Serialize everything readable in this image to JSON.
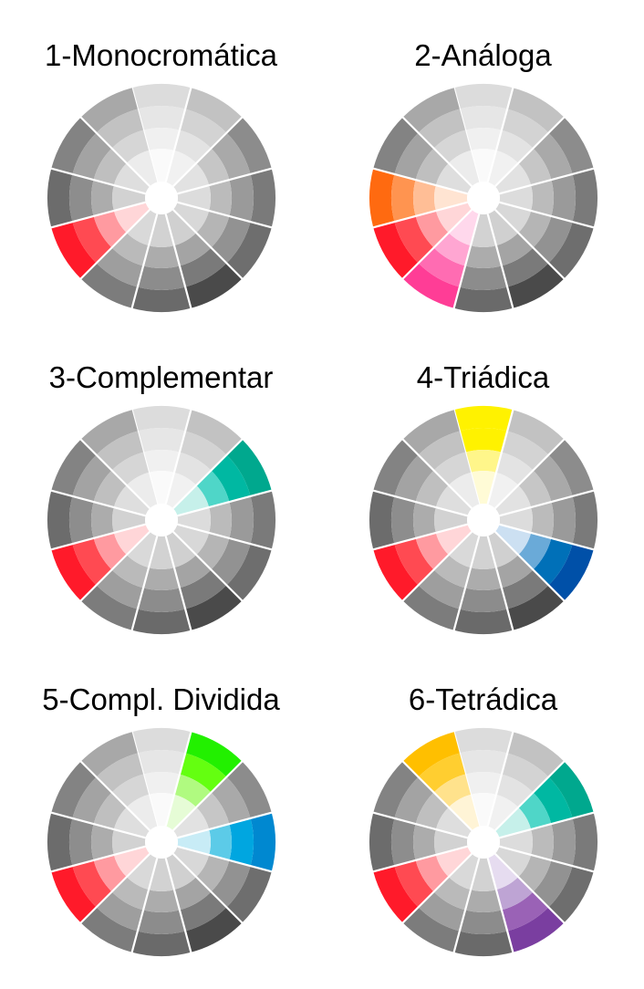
{
  "gray_palette": {
    "ring_outer": [
      "#dcdcdc",
      "#c2c2c2",
      "#8c8c8c",
      "#7a7a7a",
      "#6e6e6e",
      "#4a4a4a",
      "#6a6a6a",
      "#7c7c7c",
      "#6f6f6f",
      "#6c6c6c",
      "#838383",
      "#a8a8a8"
    ],
    "ring_mid": [
      "#e6e6e6",
      "#d3d3d3",
      "#a9a9a9",
      "#9a9a9a",
      "#929292",
      "#7a7a7a",
      "#8c8c8c",
      "#9e9e9e",
      "#8f8f8f",
      "#8d8d8d",
      "#a3a3a3",
      "#c2c2c2"
    ],
    "ring_inner": [
      "#f0f0f0",
      "#e3e3e3",
      "#c6c6c6",
      "#bbbbbb",
      "#b5b5b5",
      "#a4a4a4",
      "#acacac",
      "#bababa",
      "#aeaeae",
      "#acacac",
      "#bfbfbf",
      "#d6d6d6"
    ],
    "ring_core": [
      "#fafafa",
      "#f1f1f1",
      "#e2e2e2",
      "#dcdcdc",
      "#d8d8d8",
      "#d0d0d0",
      "#d2d2d2",
      "#d9d9d9",
      "#d3d3d3",
      "#d2d2d2",
      "#dedede",
      "#ececec"
    ]
  },
  "wheels": [
    {
      "title": "1-Monocromática",
      "highlights": [
        {
          "segment": 8,
          "colors": [
            "#ff1a2a",
            "#ff4a52",
            "#ff9aa0",
            "#ffd6d8"
          ]
        }
      ]
    },
    {
      "title": "2-Análoga",
      "highlights": [
        {
          "segment": 9,
          "colors": [
            "#ff6a10",
            "#ff9450",
            "#ffbe96",
            "#ffe4d2"
          ]
        },
        {
          "segment": 8,
          "colors": [
            "#ff1a2a",
            "#ff4a52",
            "#ff9aa0",
            "#ffd6d8"
          ]
        },
        {
          "segment": 7,
          "colors": [
            "#ff3d96",
            "#ff6cb2",
            "#ffa6d2",
            "#ffd8ec"
          ]
        }
      ]
    },
    {
      "title": "3-Complementar",
      "highlights": [
        {
          "segment": 8,
          "colors": [
            "#ff1a2a",
            "#ff4a52",
            "#ff9aa0",
            "#ffd6d8"
          ]
        },
        {
          "segment": 2,
          "colors": [
            "#00a88e",
            "#00b8a2",
            "#4fd6c8",
            "#c6f0ea"
          ]
        }
      ]
    },
    {
      "title": "4-Triádica",
      "highlights": [
        {
          "segment": 8,
          "colors": [
            "#ff1a2a",
            "#ff4a52",
            "#ff9aa0",
            "#ffd6d8"
          ]
        },
        {
          "segment": 0,
          "colors": [
            "#fff200",
            "#fff200",
            "#fff68a",
            "#fffbd6"
          ]
        },
        {
          "segment": 4,
          "colors": [
            "#0050a8",
            "#0070b8",
            "#6aaad8",
            "#cce0f2"
          ]
        }
      ]
    },
    {
      "title": "5-Compl. Dividida",
      "highlights": [
        {
          "segment": 8,
          "colors": [
            "#ff1a2a",
            "#ff4a52",
            "#ff9aa0",
            "#ffd6d8"
          ]
        },
        {
          "segment": 1,
          "colors": [
            "#22f000",
            "#64ff10",
            "#b0fa80",
            "#e6fcd6"
          ]
        },
        {
          "segment": 3,
          "colors": [
            "#0088d0",
            "#00a6e0",
            "#5ccbe8",
            "#c8ecf6"
          ]
        }
      ]
    },
    {
      "title": "6-Tetrádica",
      "highlights": [
        {
          "segment": 8,
          "colors": [
            "#ff1a2a",
            "#ff4a52",
            "#ff9aa0",
            "#ffd6d8"
          ]
        },
        {
          "segment": 11,
          "colors": [
            "#ffbf00",
            "#ffce30",
            "#ffe28c",
            "#fff4d6"
          ]
        },
        {
          "segment": 2,
          "colors": [
            "#00a88e",
            "#00b8a2",
            "#4fd6c8",
            "#c6f0ea"
          ]
        },
        {
          "segment": 5,
          "colors": [
            "#7a3ea0",
            "#9a62b6",
            "#bea4d4",
            "#e6dcf0"
          ]
        }
      ]
    }
  ]
}
